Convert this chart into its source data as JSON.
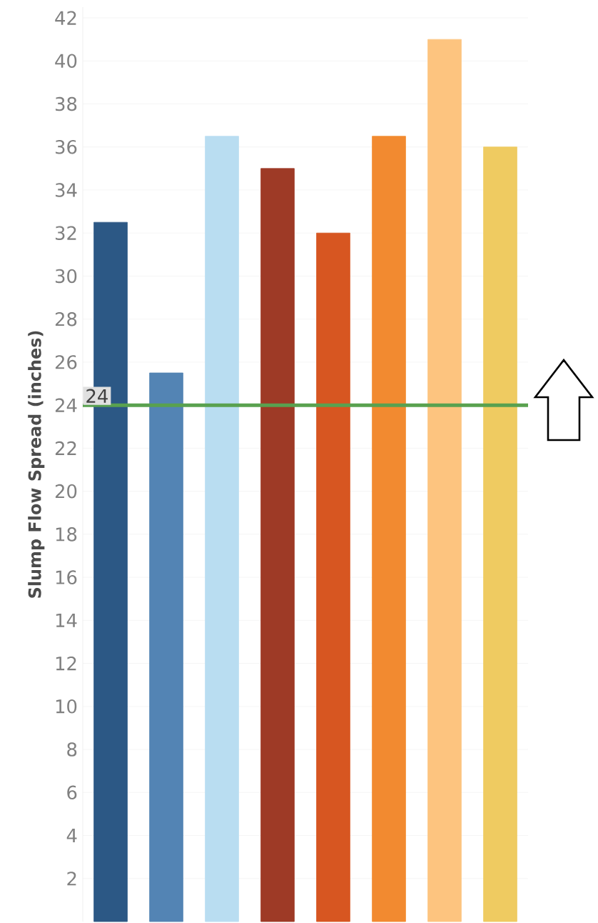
{
  "chart_data": {
    "type": "bar",
    "ylabel": "Slump Flow Spread (inches)",
    "categories": [
      null,
      null,
      null,
      null,
      null,
      null,
      null,
      null
    ],
    "values": [
      32.5,
      25.5,
      36.5,
      35,
      32,
      36.5,
      41,
      36
    ],
    "colors": [
      "#2c5885",
      "#5384b4",
      "#b9ddf1",
      "#9e3a26",
      "#d75621",
      "#f28a30",
      "#fdc47f",
      "#efcb61"
    ],
    "ylim": [
      0,
      42.5
    ],
    "yticks": [
      2,
      4,
      6,
      8,
      10,
      12,
      14,
      16,
      18,
      20,
      22,
      24,
      26,
      28,
      30,
      32,
      34,
      36,
      38,
      40,
      42
    ],
    "grid": "y",
    "ref_lines": [
      {
        "axis": "y",
        "value": 24,
        "label": "24",
        "color": "#59a14f"
      }
    ]
  }
}
